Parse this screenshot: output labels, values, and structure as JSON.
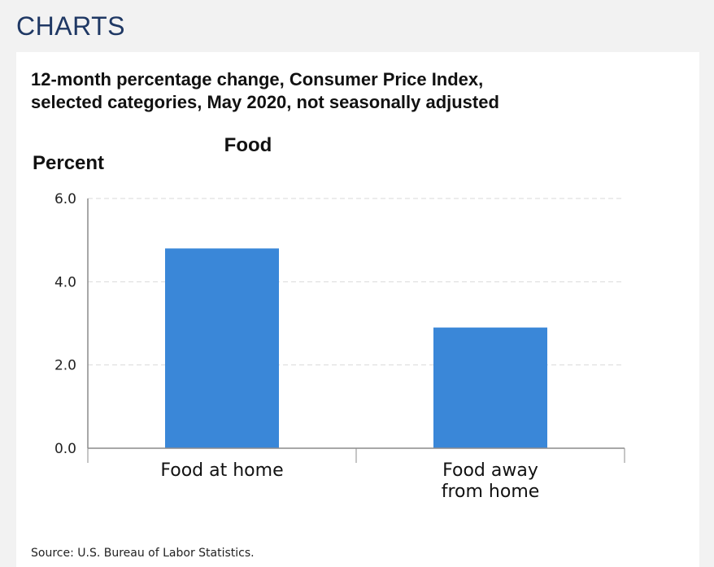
{
  "page": {
    "section_heading": "CHARTS",
    "source": "Source: U.S. Bureau of Labor Statistics."
  },
  "chart_data": {
    "type": "bar",
    "title_lines": [
      "12-month percentage change, Consumer Price Index,",
      "selected categories, May 2020, not seasonally adjusted"
    ],
    "subtitle": "Food",
    "ylabel": "Percent",
    "xlabel": "",
    "categories": [
      [
        "Food at home"
      ],
      [
        "Food away",
        "from home"
      ]
    ],
    "values": [
      4.8,
      2.9
    ],
    "ylim": [
      0,
      6
    ],
    "yticks": [
      0,
      2,
      4,
      6
    ],
    "ytick_labels": [
      "0.0",
      "2.0",
      "4.0",
      "6.0"
    ],
    "grid": true,
    "colors": {
      "bar": "#3a87d8",
      "grid": "#d9d9d9",
      "axis": "#8c8c8c",
      "heading": "#1f3864"
    }
  }
}
